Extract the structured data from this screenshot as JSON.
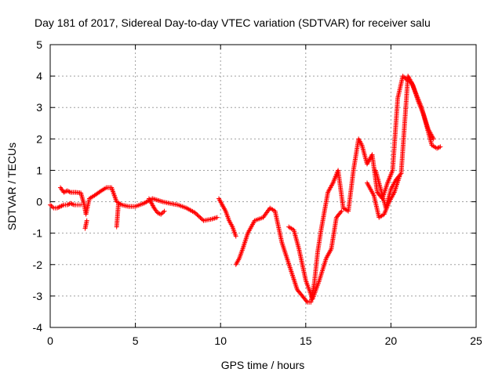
{
  "chart_data": {
    "type": "scatter",
    "title": "Day 181 of 2017, Sidereal Day-to-day VTEC variation (SDTVAR) for receiver salu",
    "xlabel": "GPS time / hours",
    "ylabel": "SDTVAR / TECUs",
    "xlim": [
      0,
      25
    ],
    "ylim": [
      -4,
      5
    ],
    "xticks": [
      0,
      5,
      10,
      15,
      20,
      25
    ],
    "yticks": [
      -4,
      -3,
      -2,
      -1,
      0,
      1,
      2,
      3,
      4,
      5
    ],
    "xtick_labels": [
      "0",
      "5",
      "10",
      "15",
      "20",
      "25"
    ],
    "ytick_labels": [
      "-4",
      "-3",
      "-2",
      "-1",
      "0",
      "1",
      "2",
      "3",
      "4",
      "5"
    ],
    "grid": true,
    "marker": "+",
    "color": "#ff0000",
    "series": [
      {
        "name": "SDTVAR",
        "x": [
          0.0,
          0.2,
          0.4,
          0.6,
          0.8,
          1.0,
          1.2,
          1.4,
          1.6,
          1.8,
          0.6,
          0.8,
          1.0,
          1.2,
          1.5,
          1.8,
          2.0,
          2.1,
          2.3,
          2.6,
          3.0,
          3.3,
          3.6,
          3.9,
          4.2,
          4.6,
          5.0,
          5.5,
          6.0,
          6.3,
          6.6,
          7.0,
          7.5,
          8.0,
          8.5,
          9.0,
          9.5,
          9.8,
          5.8,
          6.1,
          6.3,
          6.5,
          6.7,
          2.05,
          2.15,
          3.9,
          4.0,
          9.9,
          10.1,
          10.3,
          10.5,
          10.7,
          10.9,
          10.9,
          11.1,
          11.3,
          11.6,
          12.0,
          12.5,
          12.9,
          13.2,
          13.6,
          13.9,
          14.2,
          14.5,
          14.8,
          15.1,
          15.3,
          15.5,
          15.7,
          15.9,
          16.1,
          16.3,
          16.6,
          16.9,
          17.2,
          17.5,
          17.8,
          18.1,
          18.3,
          18.6,
          18.9,
          19.2,
          19.5,
          19.8,
          20.1,
          20.4,
          20.7,
          20.9,
          21.2,
          21.5,
          21.8,
          22.1,
          22.4,
          22.7,
          22.9,
          14.0,
          14.3,
          14.6,
          15.0,
          15.4,
          15.8,
          16.2,
          16.5,
          16.8,
          17.1,
          18.6,
          19.0,
          19.3,
          19.6,
          19.9,
          20.2,
          20.5,
          19.1,
          19.4,
          19.7,
          20.0,
          20.3,
          20.6,
          21.0,
          21.3,
          21.6,
          21.9,
          22.2,
          22.5
        ],
        "y": [
          -0.1,
          -0.2,
          -0.2,
          -0.15,
          -0.1,
          -0.1,
          -0.05,
          -0.1,
          -0.1,
          -0.1,
          0.45,
          0.3,
          0.35,
          0.3,
          0.3,
          0.28,
          -0.1,
          -0.4,
          0.1,
          0.2,
          0.35,
          0.45,
          0.45,
          0.0,
          -0.1,
          -0.15,
          -0.15,
          -0.05,
          0.1,
          0.05,
          0.0,
          -0.05,
          -0.1,
          -0.2,
          -0.35,
          -0.6,
          -0.55,
          -0.5,
          0.1,
          -0.2,
          -0.35,
          -0.4,
          -0.3,
          -0.85,
          -0.6,
          -0.8,
          -0.1,
          0.1,
          -0.1,
          -0.3,
          -0.6,
          -0.8,
          -1.1,
          -2.0,
          -1.8,
          -1.5,
          -1.0,
          -0.6,
          -0.5,
          -0.2,
          -0.3,
          -1.3,
          -1.8,
          -2.3,
          -2.8,
          -3.0,
          -3.2,
          -3.2,
          -2.6,
          -1.6,
          -0.9,
          -0.3,
          0.3,
          0.6,
          1.0,
          -0.2,
          -0.3,
          1.0,
          2.0,
          1.8,
          1.2,
          1.5,
          0.3,
          0.1,
          0.6,
          1.0,
          3.3,
          4.0,
          3.9,
          3.8,
          3.4,
          3.0,
          2.4,
          1.8,
          1.7,
          1.75,
          -0.8,
          -0.9,
          -1.5,
          -2.5,
          -3.1,
          -2.5,
          -1.8,
          -1.5,
          -0.5,
          -0.3,
          0.6,
          0.2,
          -0.5,
          -0.4,
          0.0,
          0.3,
          0.8,
          1.0,
          0.4,
          -0.2,
          0.4,
          0.7,
          0.9,
          4.0,
          3.7,
          3.2,
          2.8,
          2.3,
          2.0
        ]
      }
    ]
  }
}
